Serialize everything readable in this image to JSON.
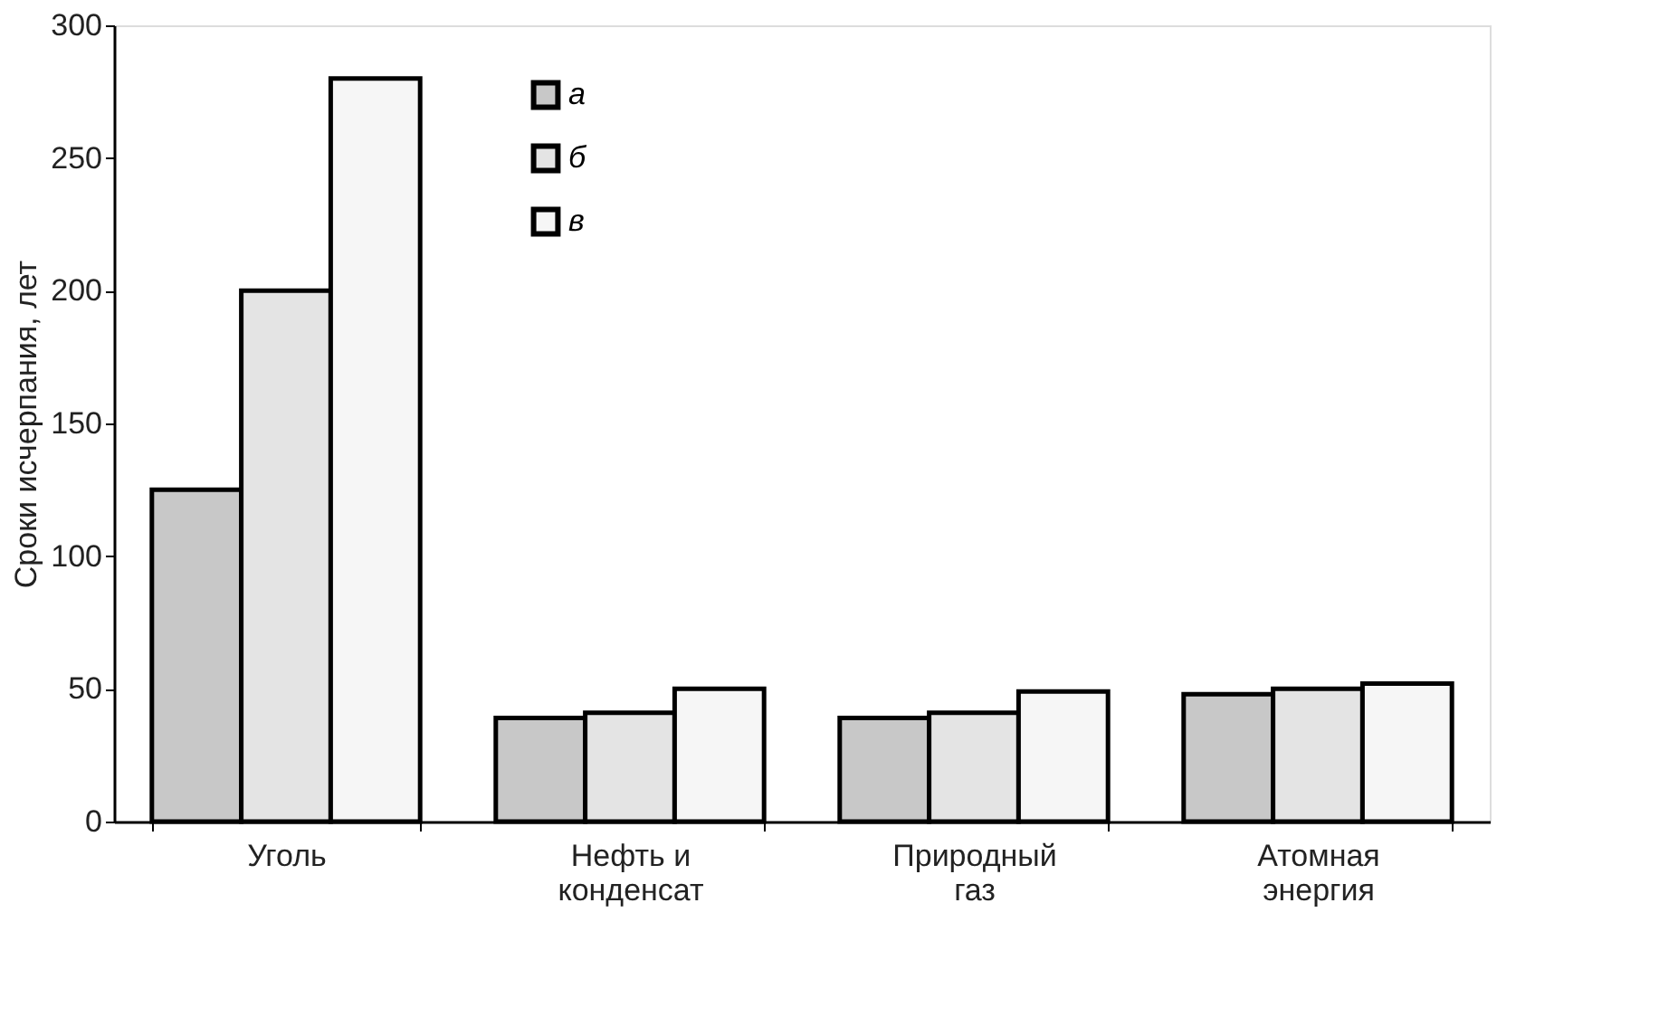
{
  "chart_data": {
    "type": "bar",
    "ylabel": "Сроки исчерпания, лет",
    "categories": [
      "Уголь",
      "Нефть и конденсат",
      "Природный газ",
      "Атомная энергия"
    ],
    "series": [
      {
        "name": "а",
        "color": "#c8c8c8",
        "values": [
          125,
          39,
          39,
          48
        ]
      },
      {
        "name": "б",
        "color": "#e4e4e4",
        "values": [
          200,
          41,
          41,
          50
        ]
      },
      {
        "name": "в",
        "color": "#f6f6f6",
        "values": [
          280,
          50,
          49,
          52
        ]
      }
    ],
    "ylim": [
      0,
      300
    ],
    "yticks": [
      0,
      50,
      100,
      150,
      200,
      250,
      300
    ],
    "grid": false,
    "legend": "top left"
  }
}
